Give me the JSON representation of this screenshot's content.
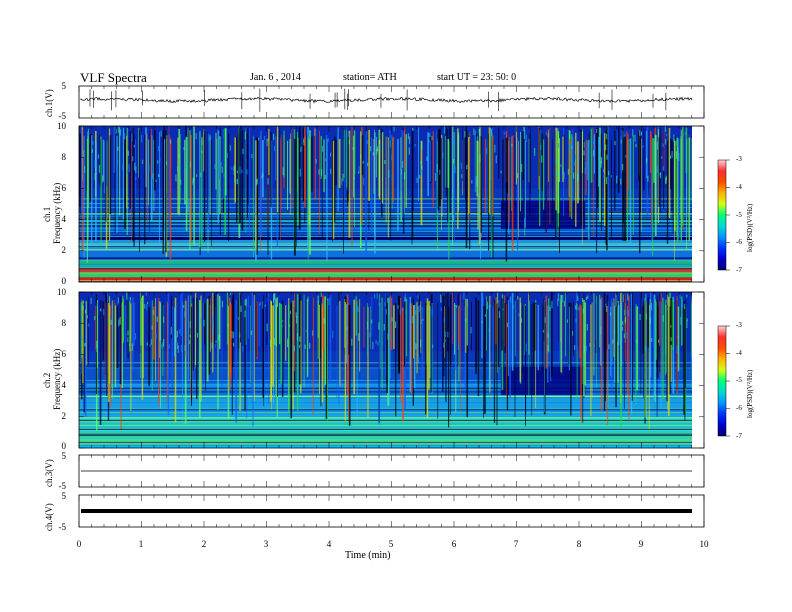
{
  "header": {
    "title": "VLF Spectra",
    "date": "Jan. 6 , 2014",
    "station": "station= ATH",
    "start": "start UT = 23: 50: 0"
  },
  "chart_data": [
    {
      "type": "line",
      "name": "ch1-waveform",
      "ylabel": "ch.1(V)",
      "ylim": [
        -5,
        5
      ],
      "yticks": [
        "5",
        "-5"
      ]
    },
    {
      "type": "heatmap",
      "name": "ch1-spectrogram",
      "ylabel_top": "ch.1",
      "ylabel": "Frequency (kHz)",
      "ylim": [
        0,
        10
      ],
      "yticks": [
        "10",
        "8",
        "6",
        "4",
        "2",
        "0"
      ],
      "colorbar": {
        "label": "log(PSD)(V²/Hz)",
        "ticks": [
          "-3",
          "-4",
          "-5",
          "-6",
          "-7"
        ],
        "range": [
          -7,
          -3
        ]
      }
    },
    {
      "type": "heatmap",
      "name": "ch2-spectrogram",
      "ylabel_top": "ch.2",
      "ylabel": "Frequency (kHz)",
      "ylim": [
        0,
        10
      ],
      "yticks": [
        "10",
        "8",
        "6",
        "4",
        "2",
        "0"
      ],
      "colorbar": {
        "label": "log(PSD)(V²/Hz)",
        "ticks": [
          "-3",
          "-4",
          "-5",
          "-6",
          "-7"
        ],
        "range": [
          -7,
          -3
        ]
      }
    },
    {
      "type": "line",
      "name": "ch3-waveform",
      "ylabel": "ch.3(V)",
      "ylim": [
        -5,
        5
      ],
      "yticks": [
        "5",
        "-5"
      ]
    },
    {
      "type": "line",
      "name": "ch4-waveform",
      "ylabel": "ch.4(V)",
      "ylim": [
        -5,
        5
      ],
      "yticks": [
        "5",
        "-5"
      ]
    }
  ],
  "x_axis": {
    "label": "Time (min)",
    "ticks": [
      "0",
      "1",
      "2",
      "3",
      "4",
      "5",
      "6",
      "7",
      "8",
      "9",
      "10"
    ],
    "xlim": [
      0,
      10
    ]
  }
}
